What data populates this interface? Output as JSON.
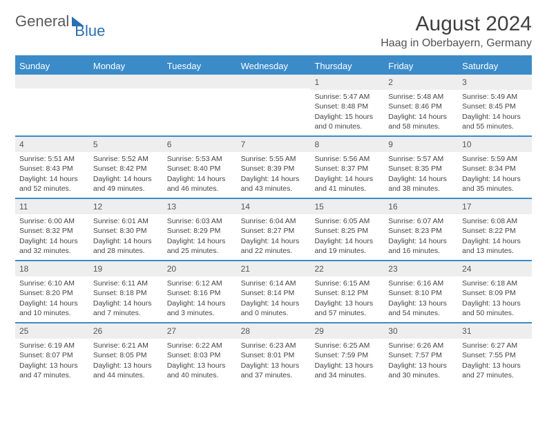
{
  "logo": {
    "text1": "General",
    "text2": "Blue"
  },
  "title": "August 2024",
  "location": "Haag in Oberbayern, Germany",
  "colors": {
    "accent": "#3b8bc9",
    "header_bg": "#3b8bc9",
    "header_text": "#ffffff",
    "daynum_bg": "#eeeeee",
    "body_text": "#444444",
    "title_text": "#404040"
  },
  "layout": {
    "columns": 7,
    "rows": 5,
    "first_day_column": 4
  },
  "day_names": [
    "Sunday",
    "Monday",
    "Tuesday",
    "Wednesday",
    "Thursday",
    "Friday",
    "Saturday"
  ],
  "days": [
    {
      "n": 1,
      "sunrise": "5:47 AM",
      "sunset": "8:48 PM",
      "daylight": "15 hours and 0 minutes."
    },
    {
      "n": 2,
      "sunrise": "5:48 AM",
      "sunset": "8:46 PM",
      "daylight": "14 hours and 58 minutes."
    },
    {
      "n": 3,
      "sunrise": "5:49 AM",
      "sunset": "8:45 PM",
      "daylight": "14 hours and 55 minutes."
    },
    {
      "n": 4,
      "sunrise": "5:51 AM",
      "sunset": "8:43 PM",
      "daylight": "14 hours and 52 minutes."
    },
    {
      "n": 5,
      "sunrise": "5:52 AM",
      "sunset": "8:42 PM",
      "daylight": "14 hours and 49 minutes."
    },
    {
      "n": 6,
      "sunrise": "5:53 AM",
      "sunset": "8:40 PM",
      "daylight": "14 hours and 46 minutes."
    },
    {
      "n": 7,
      "sunrise": "5:55 AM",
      "sunset": "8:39 PM",
      "daylight": "14 hours and 43 minutes."
    },
    {
      "n": 8,
      "sunrise": "5:56 AM",
      "sunset": "8:37 PM",
      "daylight": "14 hours and 41 minutes."
    },
    {
      "n": 9,
      "sunrise": "5:57 AM",
      "sunset": "8:35 PM",
      "daylight": "14 hours and 38 minutes."
    },
    {
      "n": 10,
      "sunrise": "5:59 AM",
      "sunset": "8:34 PM",
      "daylight": "14 hours and 35 minutes."
    },
    {
      "n": 11,
      "sunrise": "6:00 AM",
      "sunset": "8:32 PM",
      "daylight": "14 hours and 32 minutes."
    },
    {
      "n": 12,
      "sunrise": "6:01 AM",
      "sunset": "8:30 PM",
      "daylight": "14 hours and 28 minutes."
    },
    {
      "n": 13,
      "sunrise": "6:03 AM",
      "sunset": "8:29 PM",
      "daylight": "14 hours and 25 minutes."
    },
    {
      "n": 14,
      "sunrise": "6:04 AM",
      "sunset": "8:27 PM",
      "daylight": "14 hours and 22 minutes."
    },
    {
      "n": 15,
      "sunrise": "6:05 AM",
      "sunset": "8:25 PM",
      "daylight": "14 hours and 19 minutes."
    },
    {
      "n": 16,
      "sunrise": "6:07 AM",
      "sunset": "8:23 PM",
      "daylight": "14 hours and 16 minutes."
    },
    {
      "n": 17,
      "sunrise": "6:08 AM",
      "sunset": "8:22 PM",
      "daylight": "14 hours and 13 minutes."
    },
    {
      "n": 18,
      "sunrise": "6:10 AM",
      "sunset": "8:20 PM",
      "daylight": "14 hours and 10 minutes."
    },
    {
      "n": 19,
      "sunrise": "6:11 AM",
      "sunset": "8:18 PM",
      "daylight": "14 hours and 7 minutes."
    },
    {
      "n": 20,
      "sunrise": "6:12 AM",
      "sunset": "8:16 PM",
      "daylight": "14 hours and 3 minutes."
    },
    {
      "n": 21,
      "sunrise": "6:14 AM",
      "sunset": "8:14 PM",
      "daylight": "14 hours and 0 minutes."
    },
    {
      "n": 22,
      "sunrise": "6:15 AM",
      "sunset": "8:12 PM",
      "daylight": "13 hours and 57 minutes."
    },
    {
      "n": 23,
      "sunrise": "6:16 AM",
      "sunset": "8:10 PM",
      "daylight": "13 hours and 54 minutes."
    },
    {
      "n": 24,
      "sunrise": "6:18 AM",
      "sunset": "8:09 PM",
      "daylight": "13 hours and 50 minutes."
    },
    {
      "n": 25,
      "sunrise": "6:19 AM",
      "sunset": "8:07 PM",
      "daylight": "13 hours and 47 minutes."
    },
    {
      "n": 26,
      "sunrise": "6:21 AM",
      "sunset": "8:05 PM",
      "daylight": "13 hours and 44 minutes."
    },
    {
      "n": 27,
      "sunrise": "6:22 AM",
      "sunset": "8:03 PM",
      "daylight": "13 hours and 40 minutes."
    },
    {
      "n": 28,
      "sunrise": "6:23 AM",
      "sunset": "8:01 PM",
      "daylight": "13 hours and 37 minutes."
    },
    {
      "n": 29,
      "sunrise": "6:25 AM",
      "sunset": "7:59 PM",
      "daylight": "13 hours and 34 minutes."
    },
    {
      "n": 30,
      "sunrise": "6:26 AM",
      "sunset": "7:57 PM",
      "daylight": "13 hours and 30 minutes."
    },
    {
      "n": 31,
      "sunrise": "6:27 AM",
      "sunset": "7:55 PM",
      "daylight": "13 hours and 27 minutes."
    }
  ],
  "labels": {
    "sunrise": "Sunrise:",
    "sunset": "Sunset:",
    "daylight": "Daylight:"
  }
}
